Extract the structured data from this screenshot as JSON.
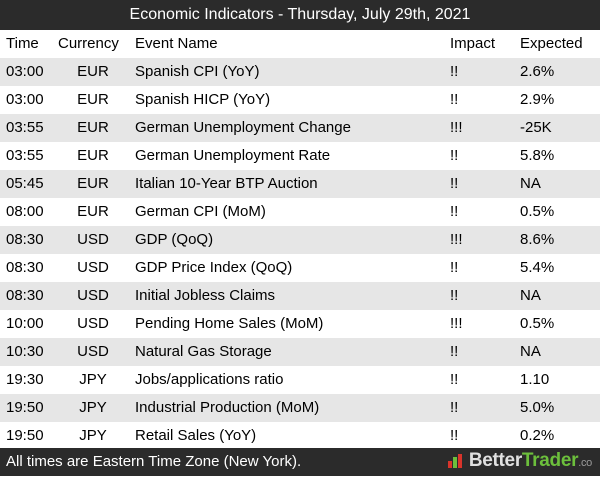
{
  "title": "Economic Indicators - Thursday, July 29th, 2021",
  "columns": {
    "time": "Time",
    "currency": "Currency",
    "event": "Event Name",
    "impact": "Impact",
    "expected": "Expected"
  },
  "rows": [
    {
      "time": "03:00",
      "currency": "EUR",
      "event": "Spanish CPI (YoY)",
      "impact": "!!",
      "expected": "2.6%"
    },
    {
      "time": "03:00",
      "currency": "EUR",
      "event": "Spanish HICP (YoY)",
      "impact": "!!",
      "expected": "2.9%"
    },
    {
      "time": "03:55",
      "currency": "EUR",
      "event": "German Unemployment Change",
      "impact": "!!!",
      "expected": "-25K"
    },
    {
      "time": "03:55",
      "currency": "EUR",
      "event": "German Unemployment Rate",
      "impact": "!!",
      "expected": "5.8%"
    },
    {
      "time": "05:45",
      "currency": "EUR",
      "event": "Italian 10-Year BTP Auction",
      "impact": "!!",
      "expected": "NA"
    },
    {
      "time": "08:00",
      "currency": "EUR",
      "event": "German CPI (MoM)",
      "impact": "!!",
      "expected": "0.5%"
    },
    {
      "time": "08:30",
      "currency": "USD",
      "event": "GDP (QoQ)",
      "impact": "!!!",
      "expected": "8.6%"
    },
    {
      "time": "08:30",
      "currency": "USD",
      "event": "GDP Price Index (QoQ)",
      "impact": "!!",
      "expected": "5.4%"
    },
    {
      "time": "08:30",
      "currency": "USD",
      "event": "Initial Jobless Claims",
      "impact": "!!",
      "expected": "NA"
    },
    {
      "time": "10:00",
      "currency": "USD",
      "event": "Pending Home Sales (MoM)",
      "impact": "!!!",
      "expected": "0.5%"
    },
    {
      "time": "10:30",
      "currency": "USD",
      "event": "Natural Gas Storage",
      "impact": "!!",
      "expected": "NA"
    },
    {
      "time": "19:30",
      "currency": "JPY",
      "event": "Jobs/applications ratio",
      "impact": "!!",
      "expected": "1.10"
    },
    {
      "time": "19:50",
      "currency": "JPY",
      "event": "Industrial Production (MoM)",
      "impact": "!!",
      "expected": "5.0%"
    },
    {
      "time": "19:50",
      "currency": "JPY",
      "event": "Retail Sales (YoY)",
      "impact": "!!",
      "expected": "0.2%"
    }
  ],
  "footer": {
    "note": "All times are Eastern Time Zone (New York).",
    "brand_part1": "Better",
    "brand_part2": "Trader",
    "brand_tld": ".co"
  },
  "colors": {
    "bar_background": "#2b2b2b",
    "row_stripe": "#e6e6e6",
    "brand_green": "#6cbf3c",
    "logo_red": "#d9342b",
    "logo_green": "#6cbf3c"
  }
}
